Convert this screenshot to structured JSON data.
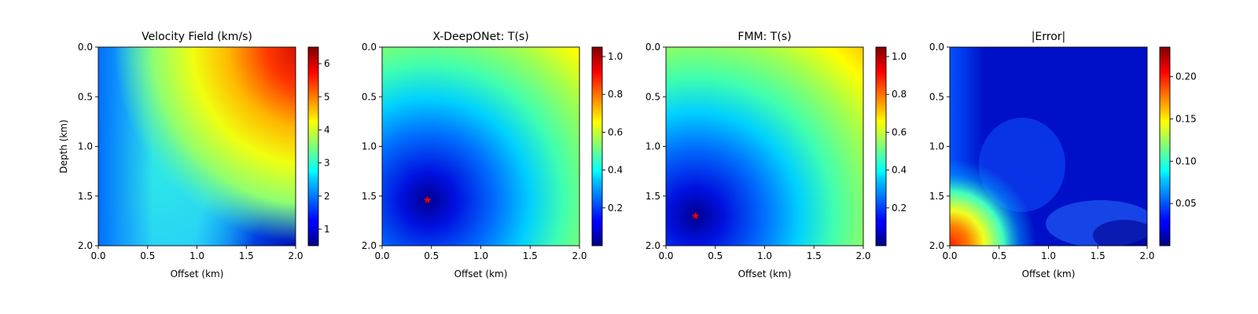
{
  "chart_data": [
    {
      "type": "heatmap",
      "title": "Velocity Field (km/s)",
      "xlabel": "Offset (km)",
      "ylabel": "Depth (km)",
      "xlim": [
        0.0,
        2.0
      ],
      "ylim": [
        2.0,
        0.0
      ],
      "xticks": [
        "0.0",
        "0.5",
        "1.0",
        "1.5",
        "2.0"
      ],
      "yticks": [
        "0.0",
        "0.5",
        "1.0",
        "1.5",
        "2.0"
      ],
      "colormap": "jet",
      "colorbar": {
        "range": [
          0.5,
          6.5
        ],
        "ticks": [
          1,
          2,
          3,
          4,
          5,
          6
        ],
        "tick_labels": [
          "1",
          "2",
          "3",
          "4",
          "5",
          "6"
        ]
      }
    },
    {
      "type": "heatmap",
      "title": "X-DeepONet: T(s)",
      "xlabel": "Offset (km)",
      "ylabel": "",
      "xlim": [
        0.0,
        2.0
      ],
      "ylim": [
        2.0,
        0.0
      ],
      "xticks": [
        "0.0",
        "0.5",
        "1.0",
        "1.5",
        "2.0"
      ],
      "yticks": [
        "0.0",
        "0.5",
        "1.0",
        "1.5",
        "2.0"
      ],
      "colormap": "jet",
      "source_marker": {
        "symbol": "star",
        "color": "#ff0000",
        "x": 0.46,
        "y": 1.54
      },
      "colorbar": {
        "range": [
          0.0,
          1.05
        ],
        "ticks": [
          0.2,
          0.4,
          0.6,
          0.8,
          1.0
        ],
        "tick_labels": [
          "0.2",
          "0.4",
          "0.6",
          "0.8",
          "1.0"
        ]
      }
    },
    {
      "type": "heatmap",
      "title": "FMM: T(s)",
      "xlabel": "Offset (km)",
      "ylabel": "",
      "xlim": [
        0.0,
        2.0
      ],
      "ylim": [
        2.0,
        0.0
      ],
      "xticks": [
        "0.0",
        "0.5",
        "1.0",
        "1.5",
        "2.0"
      ],
      "yticks": [
        "0.0",
        "0.5",
        "1.0",
        "1.5",
        "2.0"
      ],
      "colormap": "jet",
      "source_marker": {
        "symbol": "star",
        "color": "#ff0000",
        "x": 0.3,
        "y": 1.7
      },
      "colorbar": {
        "range": [
          0.0,
          1.05
        ],
        "ticks": [
          0.2,
          0.4,
          0.6,
          0.8,
          1.0
        ],
        "tick_labels": [
          "0.2",
          "0.4",
          "0.6",
          "0.8",
          "1.0"
        ]
      }
    },
    {
      "type": "heatmap",
      "title": "|Error|",
      "xlabel": "Offset (km)",
      "ylabel": "",
      "xlim": [
        0.0,
        2.0
      ],
      "ylim": [
        2.0,
        0.0
      ],
      "xticks": [
        "0.0",
        "0.5",
        "1.0",
        "1.5",
        "2.0"
      ],
      "yticks": [
        "0.0",
        "0.5",
        "1.0",
        "1.5",
        "2.0"
      ],
      "colormap": "jet",
      "colorbar": {
        "range": [
          0.0,
          0.235
        ],
        "ticks": [
          0.05,
          0.1,
          0.15,
          0.2
        ],
        "tick_labels": [
          "0.05",
          "0.10",
          "0.15",
          "0.20"
        ]
      }
    }
  ]
}
